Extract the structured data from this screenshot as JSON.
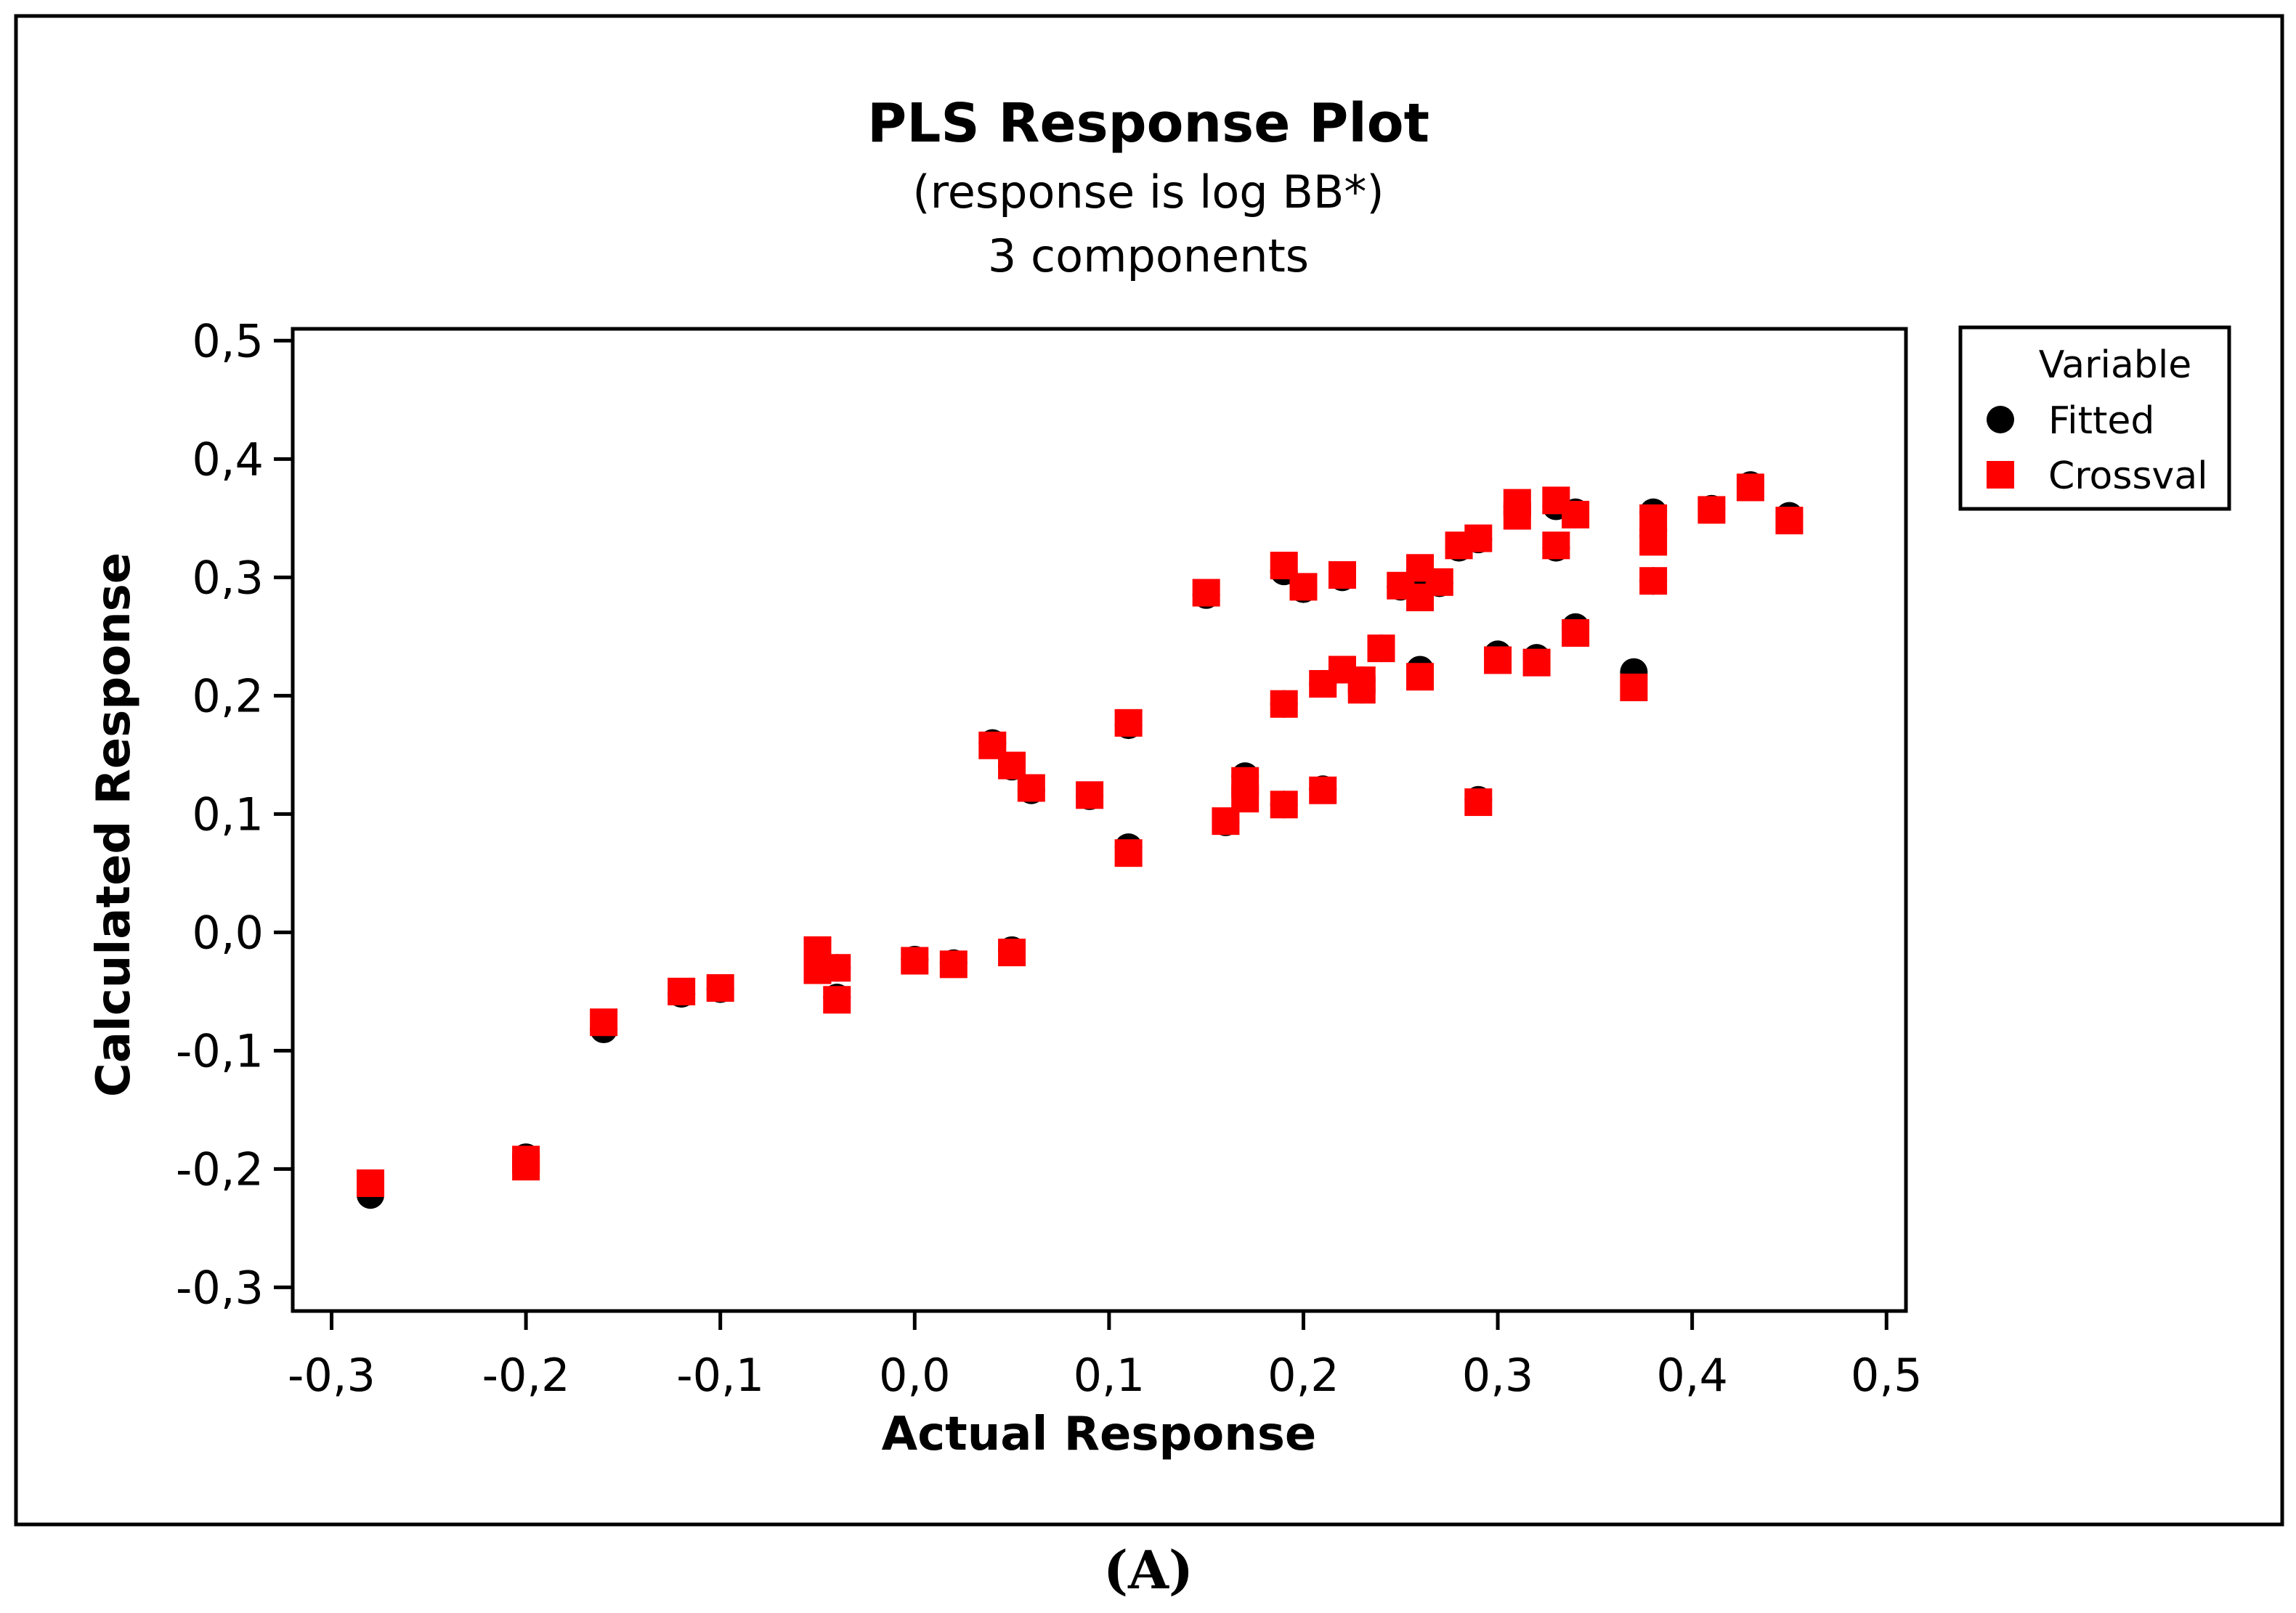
{
  "chart_data": {
    "type": "scatter",
    "title": "PLS Response Plot",
    "subtitles": [
      "(response is log BB*)",
      "3 components"
    ],
    "xlabel": "Actual Response",
    "ylabel": "Calculated Response",
    "xlim": [
      -0.32,
      0.51
    ],
    "ylim": [
      -0.32,
      0.51
    ],
    "xticks": [
      -0.3,
      -0.2,
      -0.1,
      0.0,
      0.1,
      0.2,
      0.3,
      0.4,
      0.5
    ],
    "xtick_labels": [
      "-0,3",
      "-0,2",
      "-0,1",
      "0,0",
      "0,1",
      "0,2",
      "0,3",
      "0,4",
      "0,5"
    ],
    "yticks": [
      -0.3,
      -0.2,
      -0.1,
      0.0,
      0.1,
      0.2,
      0.3,
      0.4,
      0.5
    ],
    "ytick_labels": [
      "-0,3",
      "-0,2",
      "-0,1",
      "0,0",
      "0,1",
      "0,2",
      "0,3",
      "0,4",
      "0,5"
    ],
    "legend": {
      "title": "Variable",
      "placement": "right",
      "entries": [
        "Fitted",
        "Crossval"
      ]
    },
    "colors": {
      "fitted": "#000000",
      "crossval": "#ff0000"
    },
    "caption": "(A)",
    "series": [
      {
        "name": "Fitted",
        "marker": "circle",
        "points": [
          [
            -0.28,
            -0.222
          ],
          [
            -0.2,
            -0.195
          ],
          [
            -0.2,
            -0.19
          ],
          [
            -0.16,
            -0.082
          ],
          [
            -0.12,
            -0.052
          ],
          [
            -0.1,
            -0.048
          ],
          [
            -0.05,
            -0.018
          ],
          [
            -0.05,
            -0.03
          ],
          [
            -0.04,
            -0.03
          ],
          [
            -0.04,
            -0.055
          ],
          [
            0.0,
            -0.023
          ],
          [
            0.02,
            -0.026
          ],
          [
            0.05,
            -0.015
          ],
          [
            0.04,
            0.16
          ],
          [
            0.05,
            0.14
          ],
          [
            0.06,
            0.12
          ],
          [
            0.09,
            0.115
          ],
          [
            0.11,
            0.175
          ],
          [
            0.11,
            0.072
          ],
          [
            0.15,
            0.285
          ],
          [
            0.16,
            0.093
          ],
          [
            0.17,
            0.132
          ],
          [
            0.17,
            0.115
          ],
          [
            0.19,
            0.305
          ],
          [
            0.19,
            0.193
          ],
          [
            0.19,
            0.108
          ],
          [
            0.2,
            0.29
          ],
          [
            0.21,
            0.21
          ],
          [
            0.21,
            0.121
          ],
          [
            0.22,
            0.3
          ],
          [
            0.22,
            0.222
          ],
          [
            0.23,
            0.213
          ],
          [
            0.23,
            0.205
          ],
          [
            0.24,
            0.24
          ],
          [
            0.25,
            0.292
          ],
          [
            0.26,
            0.305
          ],
          [
            0.26,
            0.285
          ],
          [
            0.26,
            0.222
          ],
          [
            0.27,
            0.295
          ],
          [
            0.28,
            0.325
          ],
          [
            0.29,
            0.332
          ],
          [
            0.29,
            0.112
          ],
          [
            0.3,
            0.235
          ],
          [
            0.31,
            0.36
          ],
          [
            0.31,
            0.355
          ],
          [
            0.32,
            0.232
          ],
          [
            0.33,
            0.36
          ],
          [
            0.33,
            0.325
          ],
          [
            0.34,
            0.355
          ],
          [
            0.34,
            0.258
          ],
          [
            0.37,
            0.22
          ],
          [
            0.38,
            0.355
          ],
          [
            0.38,
            0.335
          ],
          [
            0.38,
            0.297
          ],
          [
            0.41,
            0.358
          ],
          [
            0.43,
            0.378
          ],
          [
            0.45,
            0.352
          ]
        ]
      },
      {
        "name": "Crossval",
        "marker": "square",
        "points": [
          [
            -0.28,
            -0.212
          ],
          [
            -0.2,
            -0.198
          ],
          [
            -0.2,
            -0.192
          ],
          [
            -0.16,
            -0.076
          ],
          [
            -0.12,
            -0.05
          ],
          [
            -0.1,
            -0.047
          ],
          [
            -0.05,
            -0.015
          ],
          [
            -0.05,
            -0.032
          ],
          [
            -0.04,
            -0.03
          ],
          [
            -0.04,
            -0.057
          ],
          [
            0.0,
            -0.024
          ],
          [
            0.02,
            -0.027
          ],
          [
            0.05,
            -0.017
          ],
          [
            0.04,
            0.158
          ],
          [
            0.05,
            0.141
          ],
          [
            0.06,
            0.122
          ],
          [
            0.09,
            0.116
          ],
          [
            0.11,
            0.177
          ],
          [
            0.11,
            0.067
          ],
          [
            0.15,
            0.287
          ],
          [
            0.16,
            0.094
          ],
          [
            0.17,
            0.128
          ],
          [
            0.17,
            0.113
          ],
          [
            0.19,
            0.31
          ],
          [
            0.19,
            0.193
          ],
          [
            0.19,
            0.108
          ],
          [
            0.2,
            0.292
          ],
          [
            0.21,
            0.21
          ],
          [
            0.21,
            0.12
          ],
          [
            0.22,
            0.302
          ],
          [
            0.22,
            0.222
          ],
          [
            0.23,
            0.213
          ],
          [
            0.23,
            0.205
          ],
          [
            0.24,
            0.24
          ],
          [
            0.25,
            0.293
          ],
          [
            0.26,
            0.308
          ],
          [
            0.26,
            0.283
          ],
          [
            0.26,
            0.216
          ],
          [
            0.27,
            0.296
          ],
          [
            0.28,
            0.327
          ],
          [
            0.29,
            0.333
          ],
          [
            0.29,
            0.11
          ],
          [
            0.3,
            0.23
          ],
          [
            0.31,
            0.363
          ],
          [
            0.31,
            0.352
          ],
          [
            0.32,
            0.228
          ],
          [
            0.33,
            0.365
          ],
          [
            0.33,
            0.327
          ],
          [
            0.34,
            0.353
          ],
          [
            0.34,
            0.253
          ],
          [
            0.37,
            0.207
          ],
          [
            0.38,
            0.35
          ],
          [
            0.38,
            0.33
          ],
          [
            0.38,
            0.297
          ],
          [
            0.41,
            0.357
          ],
          [
            0.43,
            0.376
          ],
          [
            0.45,
            0.348
          ]
        ]
      }
    ]
  }
}
